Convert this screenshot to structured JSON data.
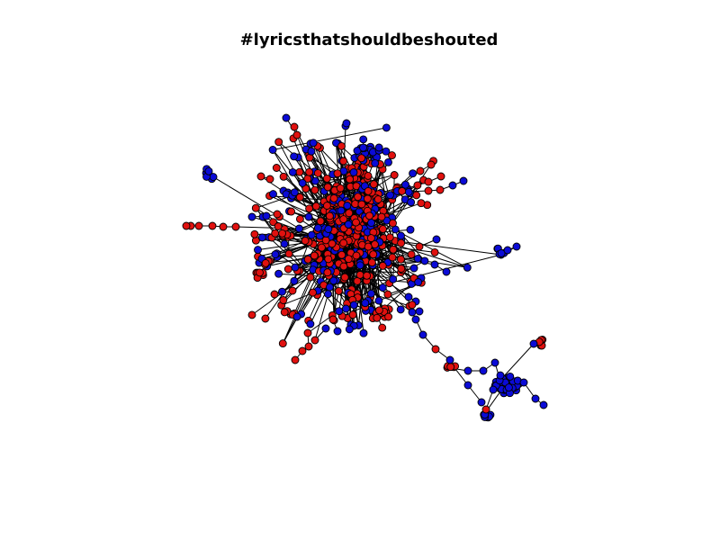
{
  "figure": {
    "title": "#lyricsthatshouldbeshouted"
  },
  "colors": {
    "background": "#ffffff",
    "edge": "#000000",
    "node_stroke": "#000000",
    "group_red": "#e0110f",
    "group_blue": "#0b0bd6"
  },
  "graph": {
    "type": "network",
    "node_groups": [
      "red",
      "blue"
    ],
    "edge_style": "solid"
  }
}
